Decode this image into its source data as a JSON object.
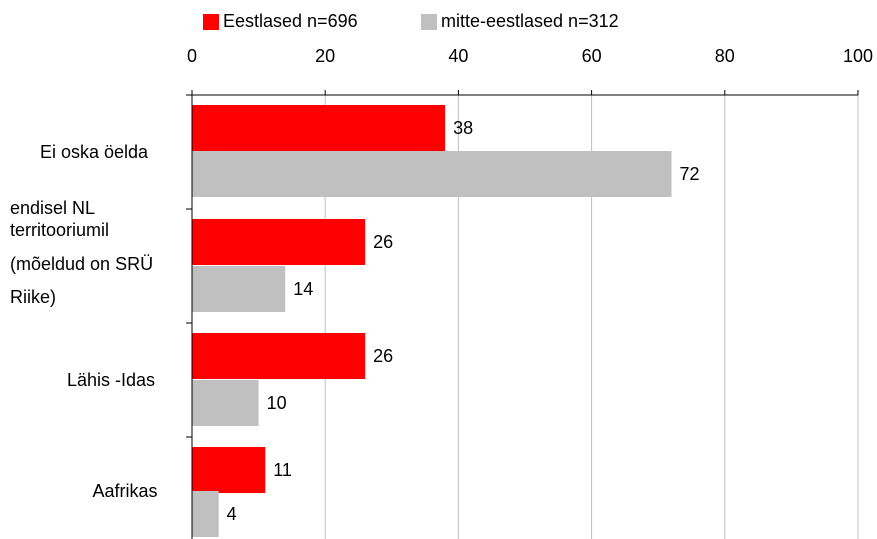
{
  "chart_data": {
    "type": "bar",
    "orientation": "horizontal",
    "categories": [
      [
        "Ei oska öelda"
      ],
      [
        "endisel NL",
        "territooriumil",
        "(mõeldud on SRÜ",
        "Riike)"
      ],
      [
        "Lähis -Idas"
      ],
      [
        "Aafrikas"
      ]
    ],
    "series": [
      {
        "name": "Eestlased n=696",
        "color": "#ff0000",
        "values": [
          38,
          26,
          26,
          11
        ]
      },
      {
        "name": "mitte-eestlased n=312",
        "color": "#c0c0c0",
        "values": [
          72,
          14,
          10,
          4
        ]
      }
    ],
    "xlim": [
      0,
      100
    ],
    "xticks": [
      0,
      20,
      40,
      60,
      80,
      100
    ],
    "axis_position": "top",
    "grid": true,
    "gridline_color": "#c0c0c0",
    "legend_position": "top",
    "title": "",
    "xlabel": "",
    "ylabel": ""
  }
}
